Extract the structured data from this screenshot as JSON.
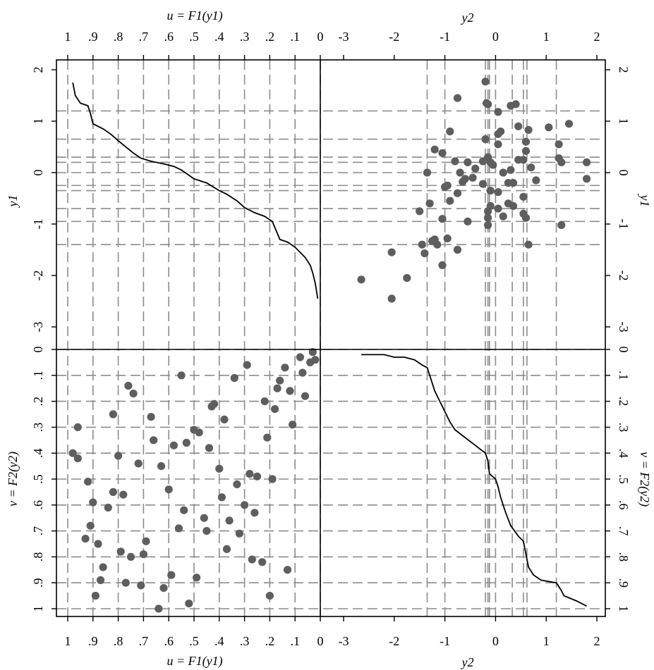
{
  "chart_data": {
    "type": "scatter",
    "layout": "2x2 copula panel",
    "axis_labels": {
      "top_left": "u = F1(y1)",
      "top_right": "y2",
      "bottom_left": "u = F1(y1)",
      "bottom_right": "y2",
      "left_top": "y1",
      "left_bottom": "v = F2(y2)",
      "right_top": "y1",
      "right_bottom": "v = F2(y2)"
    },
    "u_ticks": [
      "1",
      ".9",
      ".8",
      ".7",
      ".6",
      ".5",
      ".4",
      ".3",
      ".2",
      ".1",
      "0"
    ],
    "y2_ticks": [
      "-3",
      "-2",
      "-1",
      "0",
      "1",
      "2"
    ],
    "y1_ticks": [
      "2",
      "1",
      "0",
      "-1",
      "-2",
      "-3"
    ],
    "v_ticks": [
      "0",
      ".1",
      ".2",
      ".3",
      ".4",
      ".5",
      ".6",
      ".7",
      ".8",
      ".9",
      "1"
    ],
    "ranges": {
      "u": [
        1,
        0
      ],
      "y2": [
        -3,
        2
      ],
      "y1": [
        -3.3,
        2.1
      ],
      "v": [
        0,
        1
      ]
    },
    "grid": true,
    "grid_y2_values": [
      -1.35,
      -1.0,
      -0.2,
      -0.15,
      -0.12,
      0.0,
      0.33,
      0.55,
      0.62,
      1.2
    ],
    "grid_y1_values": [
      1.2,
      0.65,
      0.3,
      0.2,
      0.0,
      -0.25,
      -0.35,
      -0.7,
      -0.95,
      -1.4
    ],
    "points_y2_y1": [
      [
        -2.65,
        -2.08
      ],
      [
        -2.05,
        -2.45
      ],
      [
        -1.75,
        -2.05
      ],
      [
        -2.05,
        -1.55
      ],
      [
        -1.05,
        -1.8
      ],
      [
        -1.45,
        -1.4
      ],
      [
        -1.4,
        -1.57
      ],
      [
        -1.25,
        -1.33
      ],
      [
        -1.2,
        -1.3
      ],
      [
        -1.15,
        -1.4
      ],
      [
        -0.95,
        -1.28
      ],
      [
        -0.75,
        -1.5
      ],
      [
        -1.5,
        -0.75
      ],
      [
        -1.3,
        -0.6
      ],
      [
        -1.05,
        -0.9
      ],
      [
        -0.9,
        -0.55
      ],
      [
        -0.55,
        -0.95
      ],
      [
        -0.15,
        -1.02
      ],
      [
        -0.15,
        -0.88
      ],
      [
        -0.15,
        -0.75
      ],
      [
        -0.1,
        -0.65
      ],
      [
        0.05,
        -0.7
      ],
      [
        0.15,
        -0.85
      ],
      [
        0.25,
        -0.6
      ],
      [
        0.35,
        -0.65
      ],
      [
        0.55,
        -0.8
      ],
      [
        0.6,
        -0.88
      ],
      [
        0.65,
        -1.4
      ],
      [
        1.3,
        -1.02
      ],
      [
        -1.35,
        0.0
      ],
      [
        -1.2,
        0.45
      ],
      [
        -1.05,
        0.38
      ],
      [
        -1.0,
        -0.28
      ],
      [
        -0.95,
        -0.25
      ],
      [
        -0.9,
        0.8
      ],
      [
        -0.75,
        -0.4
      ],
      [
        -0.75,
        1.45
      ],
      [
        -0.8,
        0.22
      ],
      [
        -0.65,
        -0.18
      ],
      [
        -0.6,
        -0.12
      ],
      [
        -0.55,
        0.2
      ],
      [
        -0.45,
        -0.1
      ],
      [
        -0.4,
        0.08
      ],
      [
        -0.25,
        -0.22
      ],
      [
        -0.2,
        0.65
      ],
      [
        -0.15,
        0.3
      ],
      [
        -0.1,
        0.2
      ],
      [
        -0.05,
        0.15
      ],
      [
        -0.18,
        1.35
      ],
      [
        -0.15,
        1.33
      ],
      [
        -0.2,
        1.77
      ],
      [
        0.05,
        1.18
      ],
      [
        0.05,
        0.75
      ],
      [
        0.05,
        0.55
      ],
      [
        0.1,
        0.8
      ],
      [
        0.15,
        0.0
      ],
      [
        0.05,
        -0.38
      ],
      [
        -0.1,
        -0.35
      ],
      [
        0.25,
        -0.2
      ],
      [
        0.35,
        -0.2
      ],
      [
        0.3,
        0.05
      ],
      [
        0.45,
        0.25
      ],
      [
        0.45,
        0.9
      ],
      [
        0.3,
        1.3
      ],
      [
        0.4,
        1.33
      ],
      [
        0.55,
        0.25
      ],
      [
        0.6,
        0.42
      ],
      [
        0.6,
        0.6
      ],
      [
        0.65,
        0.83
      ],
      [
        0.7,
        0.1
      ],
      [
        0.8,
        -0.15
      ],
      [
        0.55,
        -0.47
      ],
      [
        1.05,
        0.88
      ],
      [
        1.45,
        0.95
      ],
      [
        1.25,
        0.55
      ],
      [
        1.25,
        0.28
      ],
      [
        1.3,
        0.2
      ],
      [
        1.8,
        0.2
      ],
      [
        1.8,
        -0.12
      ],
      [
        -0.25,
        0.22
      ],
      [
        -0.7,
        0.0
      ]
    ],
    "points_u_v": [
      [
        0.96,
        0.3
      ],
      [
        0.98,
        0.4
      ],
      [
        0.96,
        0.42
      ],
      [
        0.92,
        0.51
      ],
      [
        0.9,
        0.59
      ],
      [
        0.93,
        0.73
      ],
      [
        0.91,
        0.68
      ],
      [
        0.88,
        0.75
      ],
      [
        0.86,
        0.84
      ],
      [
        0.87,
        0.89
      ],
      [
        0.89,
        0.95
      ],
      [
        0.84,
        0.61
      ],
      [
        0.82,
        0.25
      ],
      [
        0.82,
        0.55
      ],
      [
        0.8,
        0.41
      ],
      [
        0.79,
        0.78
      ],
      [
        0.78,
        0.56
      ],
      [
        0.76,
        0.14
      ],
      [
        0.77,
        0.9
      ],
      [
        0.75,
        0.8
      ],
      [
        0.74,
        0.17
      ],
      [
        0.72,
        0.44
      ],
      [
        0.71,
        0.91
      ],
      [
        0.7,
        0.79
      ],
      [
        0.69,
        0.74
      ],
      [
        0.67,
        0.26
      ],
      [
        0.66,
        0.35
      ],
      [
        0.64,
        1.0
      ],
      [
        0.63,
        0.45
      ],
      [
        0.62,
        0.92
      ],
      [
        0.6,
        0.54
      ],
      [
        0.59,
        0.87
      ],
      [
        0.58,
        0.37
      ],
      [
        0.56,
        0.69
      ],
      [
        0.55,
        0.1
      ],
      [
        0.54,
        0.62
      ],
      [
        0.53,
        0.36
      ],
      [
        0.52,
        0.98
      ],
      [
        0.5,
        0.31
      ],
      [
        0.49,
        0.88
      ],
      [
        0.48,
        0.32
      ],
      [
        0.46,
        0.65
      ],
      [
        0.45,
        0.7
      ],
      [
        0.44,
        0.38
      ],
      [
        0.43,
        0.22
      ],
      [
        0.42,
        0.21
      ],
      [
        0.4,
        0.46
      ],
      [
        0.39,
        0.57
      ],
      [
        0.38,
        0.27
      ],
      [
        0.37,
        0.77
      ],
      [
        0.36,
        0.66
      ],
      [
        0.34,
        0.11
      ],
      [
        0.33,
        0.52
      ],
      [
        0.32,
        0.71
      ],
      [
        0.3,
        0.6
      ],
      [
        0.29,
        0.06
      ],
      [
        0.28,
        0.48
      ],
      [
        0.27,
        0.81
      ],
      [
        0.26,
        0.63
      ],
      [
        0.25,
        0.49
      ],
      [
        0.23,
        0.82
      ],
      [
        0.22,
        0.2
      ],
      [
        0.21,
        0.34
      ],
      [
        0.2,
        0.95
      ],
      [
        0.19,
        0.5
      ],
      [
        0.18,
        0.23
      ],
      [
        0.17,
        0.15
      ],
      [
        0.16,
        0.12
      ],
      [
        0.14,
        0.07
      ],
      [
        0.13,
        0.85
      ],
      [
        0.12,
        0.16
      ],
      [
        0.11,
        0.29
      ],
      [
        0.08,
        0.03
      ],
      [
        0.07,
        0.09
      ],
      [
        0.06,
        0.18
      ],
      [
        0.04,
        0.05
      ],
      [
        0.03,
        0.01
      ],
      [
        0.02,
        0.04
      ]
    ],
    "curve_u_y1": [
      [
        0.98,
        1.75
      ],
      [
        0.97,
        1.5
      ],
      [
        0.95,
        1.35
      ],
      [
        0.92,
        1.3
      ],
      [
        0.91,
        1.15
      ],
      [
        0.9,
        0.95
      ],
      [
        0.86,
        0.85
      ],
      [
        0.83,
        0.75
      ],
      [
        0.8,
        0.62
      ],
      [
        0.77,
        0.5
      ],
      [
        0.74,
        0.38
      ],
      [
        0.71,
        0.28
      ],
      [
        0.67,
        0.22
      ],
      [
        0.62,
        0.17
      ],
      [
        0.58,
        0.12
      ],
      [
        0.55,
        0.05
      ],
      [
        0.5,
        -0.12
      ],
      [
        0.45,
        -0.2
      ],
      [
        0.4,
        -0.35
      ],
      [
        0.37,
        -0.42
      ],
      [
        0.33,
        -0.55
      ],
      [
        0.3,
        -0.68
      ],
      [
        0.26,
        -0.78
      ],
      [
        0.22,
        -0.85
      ],
      [
        0.19,
        -0.95
      ],
      [
        0.16,
        -1.3
      ],
      [
        0.13,
        -1.35
      ],
      [
        0.1,
        -1.45
      ],
      [
        0.08,
        -1.55
      ],
      [
        0.06,
        -1.65
      ],
      [
        0.04,
        -1.8
      ],
      [
        0.03,
        -1.95
      ],
      [
        0.02,
        -2.15
      ],
      [
        0.01,
        -2.45
      ]
    ],
    "curve_y2_v": [
      [
        -2.65,
        0.02
      ],
      [
        -2.2,
        0.02
      ],
      [
        -2.0,
        0.03
      ],
      [
        -1.8,
        0.03
      ],
      [
        -1.6,
        0.04
      ],
      [
        -1.45,
        0.06
      ],
      [
        -1.35,
        0.07
      ],
      [
        -1.3,
        0.1
      ],
      [
        -1.2,
        0.16
      ],
      [
        -1.1,
        0.2
      ],
      [
        -1.0,
        0.24
      ],
      [
        -0.9,
        0.28
      ],
      [
        -0.8,
        0.31
      ],
      [
        -0.6,
        0.34
      ],
      [
        -0.4,
        0.37
      ],
      [
        -0.2,
        0.4
      ],
      [
        -0.15,
        0.43
      ],
      [
        -0.12,
        0.48
      ],
      [
        0.0,
        0.5
      ],
      [
        0.05,
        0.53
      ],
      [
        0.1,
        0.57
      ],
      [
        0.2,
        0.63
      ],
      [
        0.3,
        0.68
      ],
      [
        0.45,
        0.72
      ],
      [
        0.55,
        0.74
      ],
      [
        0.6,
        0.79
      ],
      [
        0.65,
        0.84
      ],
      [
        0.75,
        0.87
      ],
      [
        0.9,
        0.89
      ],
      [
        1.2,
        0.9
      ],
      [
        1.3,
        0.93
      ],
      [
        1.35,
        0.95
      ],
      [
        1.6,
        0.97
      ],
      [
        1.8,
        0.99
      ]
    ]
  }
}
